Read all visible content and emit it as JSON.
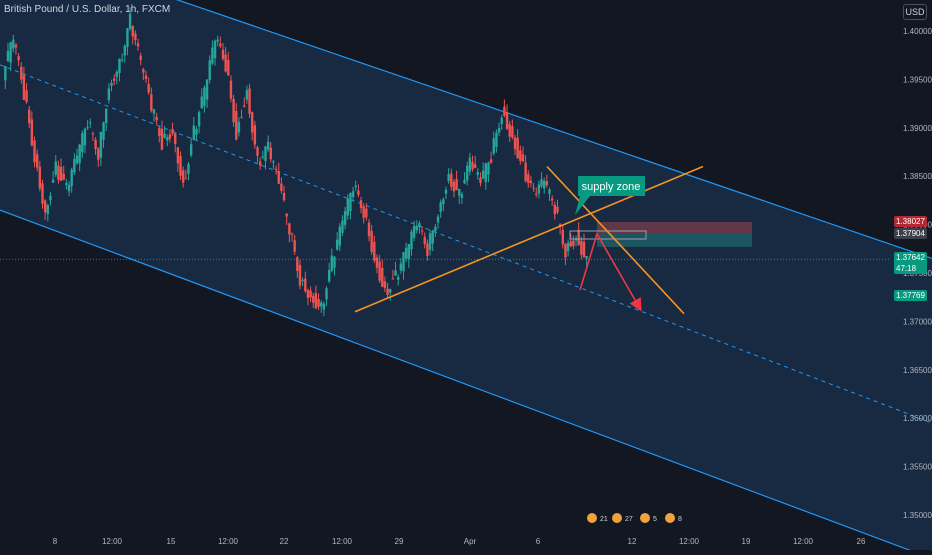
{
  "header": {
    "title": "British Pound / U.S. Dollar, 1h, FXCM",
    "currency": "USD"
  },
  "price_labels": {
    "target_high": "1.38027",
    "entry": "1.37904",
    "current": "1.37642",
    "countdown": "47:18",
    "target_low": "1.37769"
  },
  "colors": {
    "background": "#131722",
    "channel_fill": "#1c3b5c",
    "channel_line": "#2196f3",
    "trendline": "#f7931e",
    "arrow": "#f23645",
    "up_candle": "#26a69a",
    "down_candle": "#ef5350",
    "label_bg": "#089981"
  },
  "chart_data": {
    "type": "line",
    "title": "British Pound / U.S. Dollar, 1h, FXCM",
    "xlabel": "",
    "ylabel": "",
    "ylim": [
      1.3484,
      1.4055
    ],
    "y_ticks": [
      "1.40000",
      "1.39500",
      "1.39000",
      "1.38500",
      "1.38000",
      "1.37500",
      "1.37000",
      "1.36500",
      "1.36000",
      "1.35500",
      "1.35000"
    ],
    "x_ticks": [
      "8",
      "12:00",
      "15",
      "12:00",
      "22",
      "12:00",
      "29",
      "Apr",
      "6",
      "12",
      "12:00",
      "19",
      "12:00",
      "26"
    ],
    "grid": false,
    "series": [
      {
        "values": [
          1.3955,
          1.399,
          1.3935,
          1.3872,
          1.3815,
          1.386,
          1.3835,
          1.3868,
          1.3905,
          1.3875,
          1.3945,
          1.3968,
          1.401,
          1.3965,
          1.392,
          1.3885,
          1.39,
          1.3842,
          1.3895,
          1.3935,
          1.399,
          1.3965,
          1.3895,
          1.394,
          1.3865,
          1.3878,
          1.384,
          1.3795,
          1.3745,
          1.3728,
          1.3715,
          1.376,
          1.38,
          1.3838,
          1.3815,
          1.3768,
          1.3732,
          1.3745,
          1.377,
          1.38,
          1.3775,
          1.3815,
          1.3852,
          1.383,
          1.3862,
          1.3842,
          1.387,
          1.3918,
          1.3892,
          1.386,
          1.383,
          1.3842,
          1.3815,
          1.3774,
          1.379,
          1.3764
        ]
      }
    ],
    "channel": {
      "upper": {
        "start": 1.4095,
        "end": 1.3765
      },
      "mid": {
        "start": 1.3965,
        "end": 1.3595
      },
      "lower": {
        "start": 1.3815,
        "end": 1.3455
      }
    },
    "trendlines": [
      {
        "name": "support",
        "from": 1.371,
        "to": 1.386
      },
      {
        "name": "resistance",
        "from": 1.386,
        "to": 1.3708
      }
    ],
    "zones": {
      "stop": [
        1.38027,
        1.37904
      ],
      "target": [
        1.37904,
        1.37769
      ]
    },
    "annotations": [
      {
        "text": "supply zone"
      }
    ],
    "arrow": {
      "from": 1.37904,
      "to": 1.37132
    }
  },
  "toolbar_icons": [
    {
      "name": "events-icon",
      "label": "21"
    },
    {
      "name": "events-icon",
      "label": "27"
    },
    {
      "name": "events-icon",
      "label": "5"
    },
    {
      "name": "events-icon",
      "label": "8"
    }
  ]
}
